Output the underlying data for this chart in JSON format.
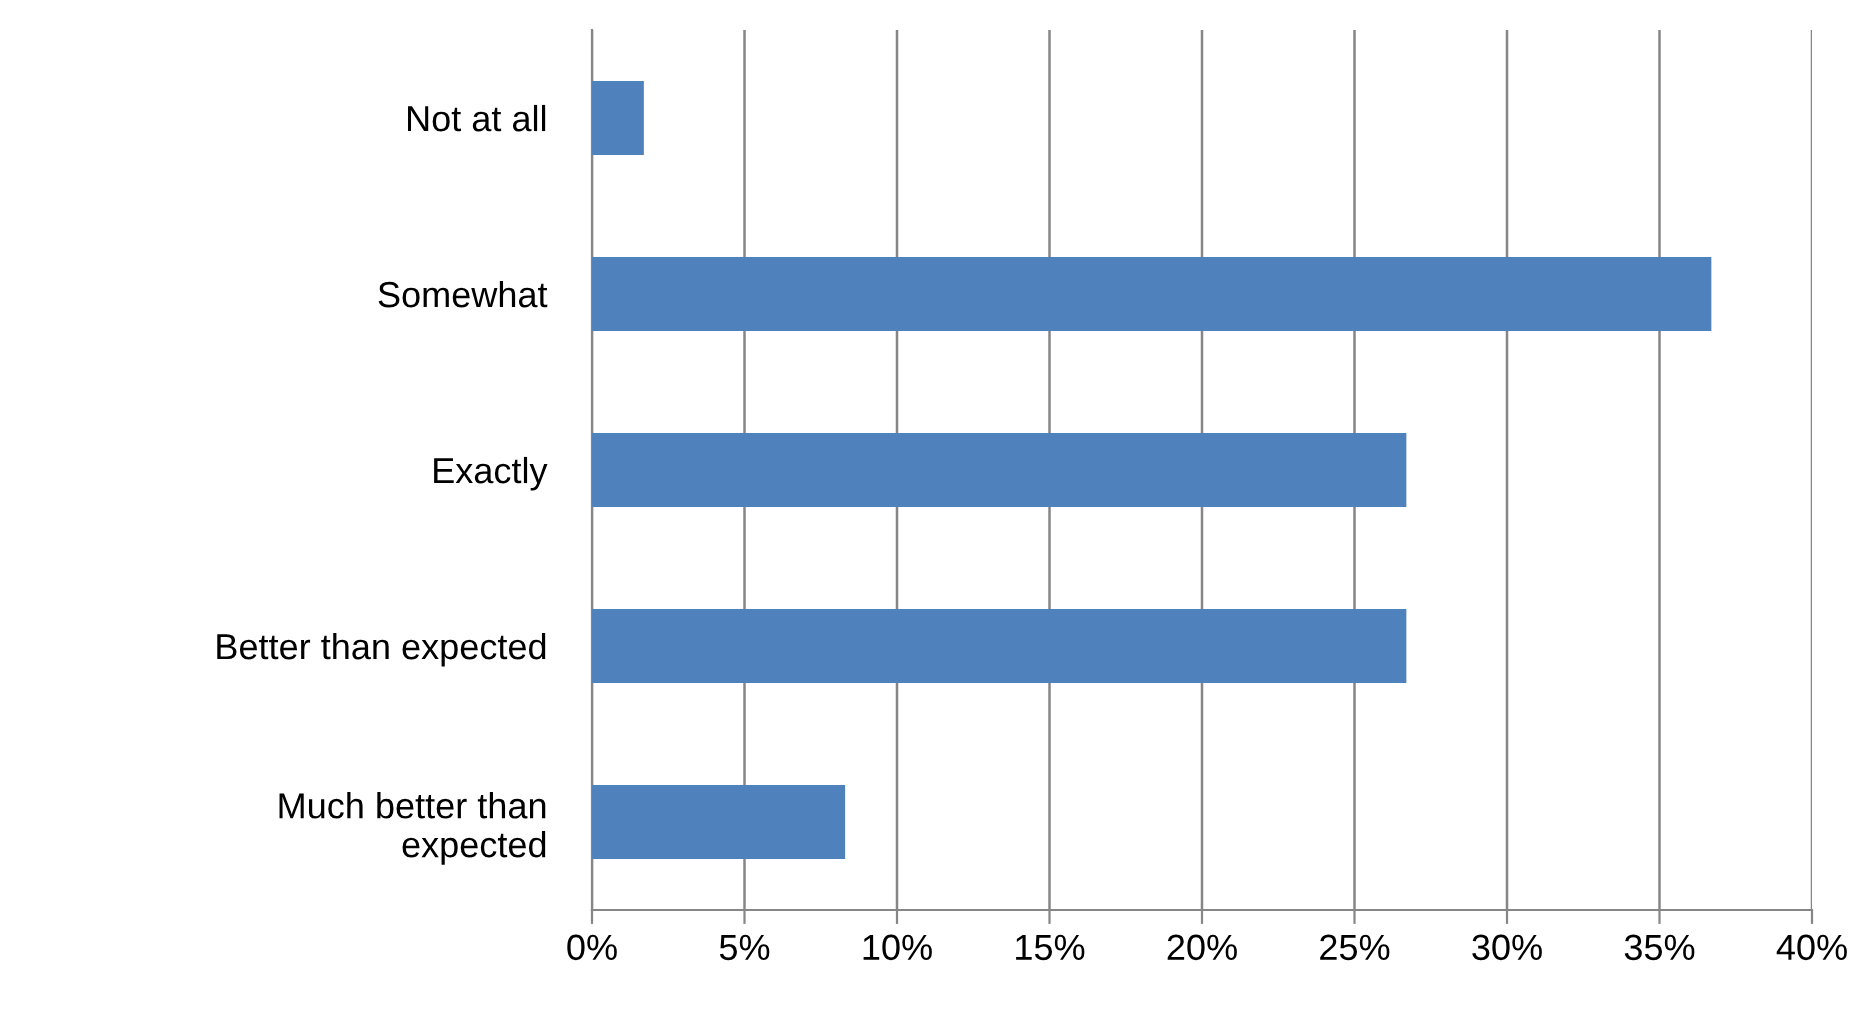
{
  "chart_data": {
    "type": "bar",
    "orientation": "horizontal",
    "categories": [
      "Not at all",
      "Somewhat",
      "Exactly",
      "Better than expected",
      "Much better than\nexpected"
    ],
    "values": [
      1.7,
      36.7,
      26.7,
      26.7,
      8.3
    ],
    "color": "#4f81bd",
    "xlim": [
      0,
      40
    ],
    "xticks": [
      {
        "value": 0,
        "label": "0%"
      },
      {
        "value": 5,
        "label": "5%"
      },
      {
        "value": 10,
        "label": "10%"
      },
      {
        "value": 15,
        "label": "15%"
      },
      {
        "value": 20,
        "label": "20%"
      },
      {
        "value": 25,
        "label": "25%"
      },
      {
        "value": 30,
        "label": "30%"
      },
      {
        "value": 35,
        "label": "35%"
      },
      {
        "value": 40,
        "label": "40%"
      }
    ],
    "grid": "x"
  }
}
